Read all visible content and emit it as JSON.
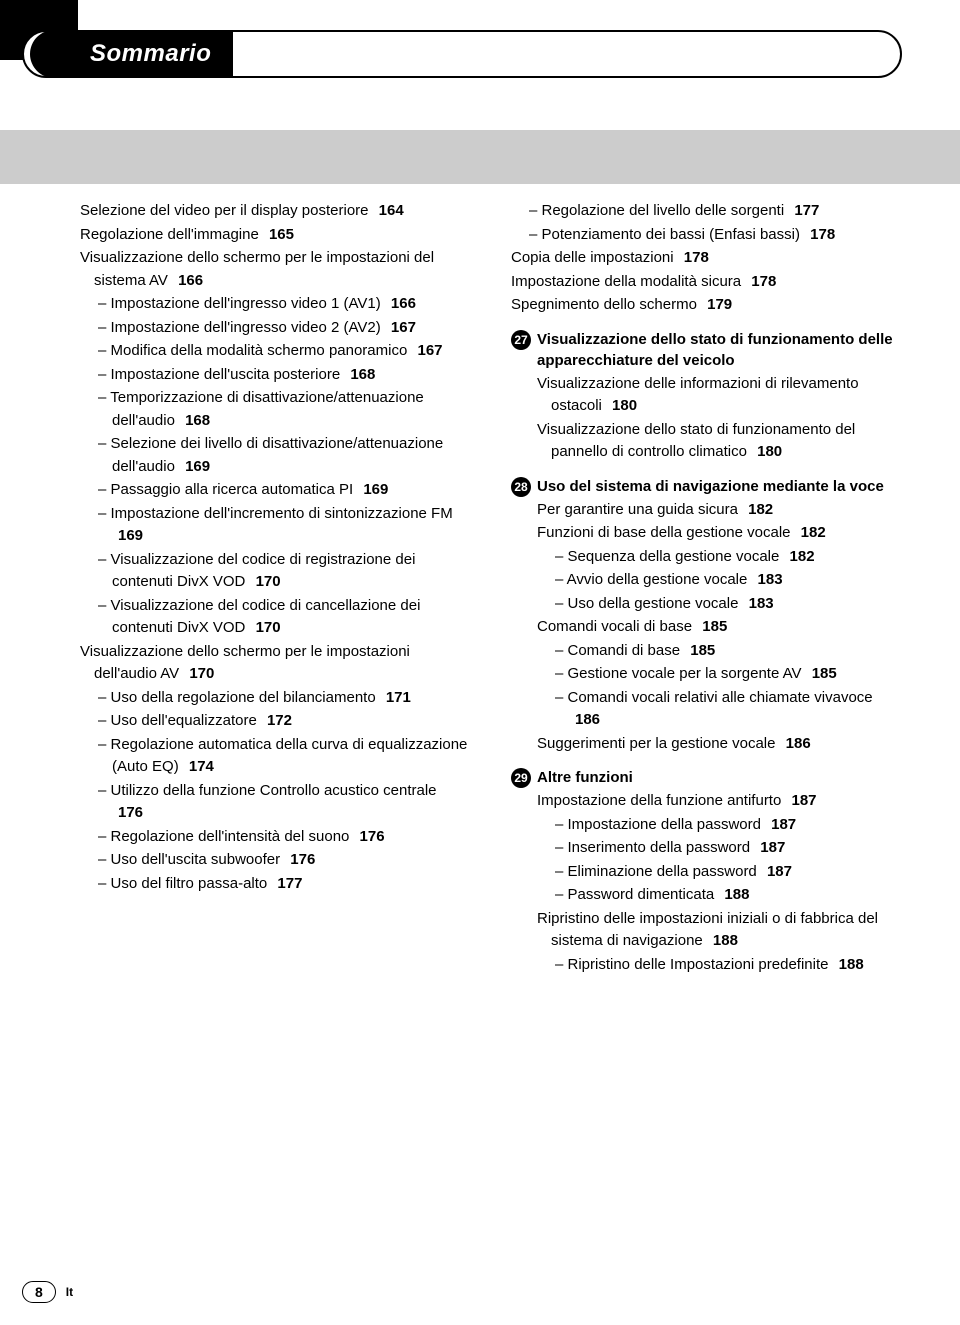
{
  "header": {
    "title": "Sommario"
  },
  "footer": {
    "page_number": "8",
    "lang": "It"
  },
  "colors": {
    "bg": "#ffffff",
    "text": "#000000",
    "band": "#cccccc"
  },
  "leftColumn": [
    {
      "level": 0,
      "text": "Selezione del video per il display posteriore",
      "page": "164",
      "dash": false
    },
    {
      "level": 0,
      "text": "Regolazione dell'immagine",
      "page": "165",
      "dash": false
    },
    {
      "level": 0,
      "text": "Visualizzazione dello schermo per le impostazioni del sistema AV",
      "page": "166",
      "dash": false
    },
    {
      "level": 1,
      "text": "Impostazione dell'ingresso video 1 (AV1)",
      "page": "166",
      "dash": true
    },
    {
      "level": 1,
      "text": "Impostazione dell'ingresso video 2 (AV2)",
      "page": "167",
      "dash": true
    },
    {
      "level": 1,
      "text": "Modifica della modalità schermo panoramico",
      "page": "167",
      "dash": true
    },
    {
      "level": 1,
      "text": "Impostazione dell'uscita posteriore",
      "page": "168",
      "dash": true
    },
    {
      "level": 1,
      "text": "Temporizzazione di disattivazione/attenuazione dell'audio",
      "page": "168",
      "dash": true
    },
    {
      "level": 1,
      "text": "Selezione dei livello di disattivazione/attenuazione dell'audio",
      "page": "169",
      "dash": true
    },
    {
      "level": 1,
      "text": "Passaggio alla ricerca automatica PI",
      "page": "169",
      "dash": true
    },
    {
      "level": 1,
      "text": "Impostazione dell'incremento di sintonizzazione FM",
      "page": "169",
      "dash": true
    },
    {
      "level": 1,
      "text": "Visualizzazione del codice di registrazione dei contenuti DivX VOD",
      "page": "170",
      "dash": true
    },
    {
      "level": 1,
      "text": "Visualizzazione del codice di cancellazione dei contenuti DivX VOD",
      "page": "170",
      "dash": true
    },
    {
      "level": 0,
      "text": "Visualizzazione dello schermo per le impostazioni dell'audio AV",
      "page": "170",
      "dash": false
    },
    {
      "level": 1,
      "text": "Uso della regolazione del bilanciamento",
      "page": "171",
      "dash": true
    },
    {
      "level": 1,
      "text": "Uso dell'equalizzatore",
      "page": "172",
      "dash": true
    },
    {
      "level": 1,
      "text": "Regolazione automatica della curva di equalizzazione (Auto EQ)",
      "page": "174",
      "dash": true
    },
    {
      "level": 1,
      "text": "Utilizzo della funzione Controllo acustico centrale",
      "page": "176",
      "dash": true
    },
    {
      "level": 1,
      "text": "Regolazione dell'intensità del suono",
      "page": "176",
      "dash": true
    },
    {
      "level": 1,
      "text": "Uso dell'uscita subwoofer",
      "page": "176",
      "dash": true
    },
    {
      "level": 1,
      "text": "Uso del filtro passa-alto",
      "page": "177",
      "dash": true
    }
  ],
  "rightPre": [
    {
      "level": 1,
      "text": "Regolazione del livello delle sorgenti",
      "page": "177",
      "dash": true
    },
    {
      "level": 1,
      "text": "Potenziamento dei bassi (Enfasi bassi)",
      "page": "178",
      "dash": true
    },
    {
      "level": 0,
      "text": "Copia delle impostazioni",
      "page": "178",
      "dash": false
    },
    {
      "level": 0,
      "text": "Impostazione della modalità sicura",
      "page": "178",
      "dash": false
    },
    {
      "level": 0,
      "text": "Spegnimento dello schermo",
      "page": "179",
      "dash": false
    }
  ],
  "sections": [
    {
      "num": "27",
      "title": "Visualizzazione dello stato di funzionamento delle apparecchiature del veicolo",
      "entries": [
        {
          "level": 0,
          "text": "Visualizzazione delle informazioni di rilevamento ostacoli",
          "page": "180",
          "dash": false
        },
        {
          "level": 0,
          "text": "Visualizzazione dello stato di funzionamento del pannello di controllo climatico",
          "page": "180",
          "dash": false
        }
      ]
    },
    {
      "num": "28",
      "title": "Uso del sistema di navigazione mediante la voce",
      "entries": [
        {
          "level": 0,
          "text": "Per garantire una guida sicura",
          "page": "182",
          "dash": false
        },
        {
          "level": 0,
          "text": "Funzioni di base della gestione vocale",
          "page": "182",
          "dash": false
        },
        {
          "level": 1,
          "text": "Sequenza della gestione vocale",
          "page": "182",
          "dash": true
        },
        {
          "level": 1,
          "text": "Avvio della gestione vocale",
          "page": "183",
          "dash": true
        },
        {
          "level": 1,
          "text": "Uso della gestione vocale",
          "page": "183",
          "dash": true
        },
        {
          "level": 0,
          "text": "Comandi vocali di base",
          "page": "185",
          "dash": false
        },
        {
          "level": 1,
          "text": "Comandi di base",
          "page": "185",
          "dash": true
        },
        {
          "level": 1,
          "text": "Gestione vocale per la sorgente AV",
          "page": "185",
          "dash": true
        },
        {
          "level": 1,
          "text": "Comandi vocali relativi alle chiamate vivavoce",
          "page": "186",
          "dash": true
        },
        {
          "level": 0,
          "text": "Suggerimenti per la gestione vocale",
          "page": "186",
          "dash": false
        }
      ]
    },
    {
      "num": "29",
      "title": "Altre funzioni",
      "entries": [
        {
          "level": 0,
          "text": "Impostazione della funzione antifurto",
          "page": "187",
          "dash": false
        },
        {
          "level": 1,
          "text": "Impostazione della password",
          "page": "187",
          "dash": true
        },
        {
          "level": 1,
          "text": "Inserimento della password",
          "page": "187",
          "dash": true
        },
        {
          "level": 1,
          "text": "Eliminazione della password",
          "page": "187",
          "dash": true
        },
        {
          "level": 1,
          "text": "Password dimenticata",
          "page": "188",
          "dash": true
        },
        {
          "level": 0,
          "text": "Ripristino delle impostazioni iniziali o di fabbrica del sistema di navigazione",
          "page": "188",
          "dash": false
        },
        {
          "level": 1,
          "text": "Ripristino delle Impostazioni predefinite",
          "page": "188",
          "dash": true
        }
      ]
    }
  ]
}
